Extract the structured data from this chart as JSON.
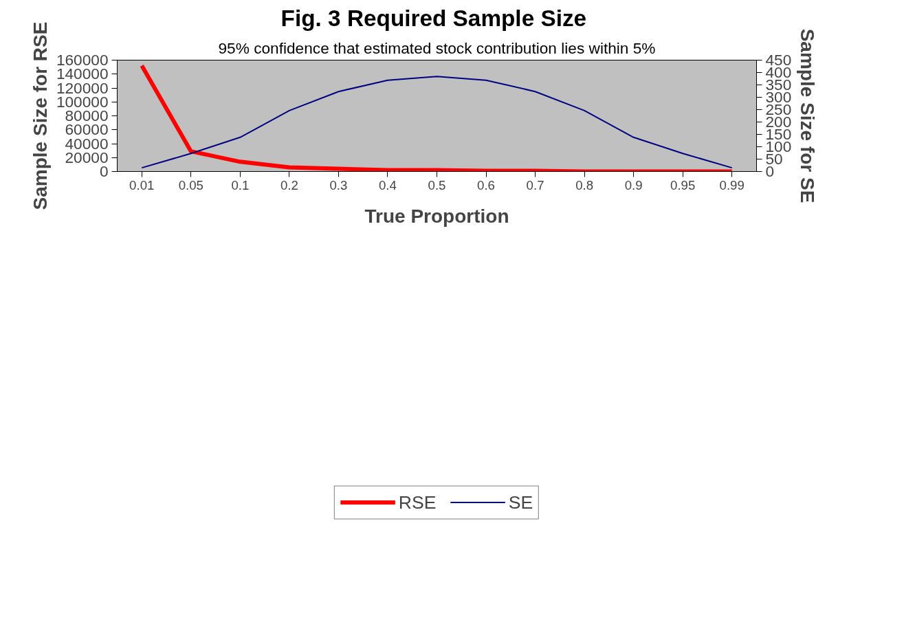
{
  "chart_data": {
    "type": "line",
    "title": "Fig. 3  Required Sample Size",
    "subtitle": "95% confidence that estimated stock contribution lies within 5%",
    "xlabel": "True Proportion",
    "ylabel": "Sample Size for RSE",
    "y2label": "Sample Size for SE",
    "categories": [
      "0.01",
      "0.05",
      "0.1",
      "0.2",
      "0.3",
      "0.4",
      "0.5",
      "0.6",
      "0.7",
      "0.8",
      "0.9",
      "0.95",
      "0.99"
    ],
    "series": [
      {
        "name": "RSE",
        "color": "#ff0000",
        "values": [
          152000,
          29000,
          14000,
          6000,
          4000,
          2000,
          2000,
          1000,
          1000,
          0,
          0,
          0,
          0
        ]
      },
      {
        "name": "SE",
        "color": "#000080",
        "axis": "y2",
        "values": [
          15,
          73,
          138,
          246,
          323,
          369,
          384,
          369,
          323,
          246,
          138,
          73,
          15
        ]
      }
    ],
    "ylim": [
      0,
      160000
    ],
    "yticks": [
      0,
      20000,
      40000,
      60000,
      80000,
      100000,
      120000,
      140000,
      160000
    ],
    "y2lim": [
      0,
      450
    ],
    "y2ticks": [
      0,
      50,
      100,
      150,
      200,
      250,
      300,
      350,
      400,
      450
    ],
    "grid": false,
    "legend": "bottom",
    "marker": "none",
    "line_style": "solid"
  }
}
